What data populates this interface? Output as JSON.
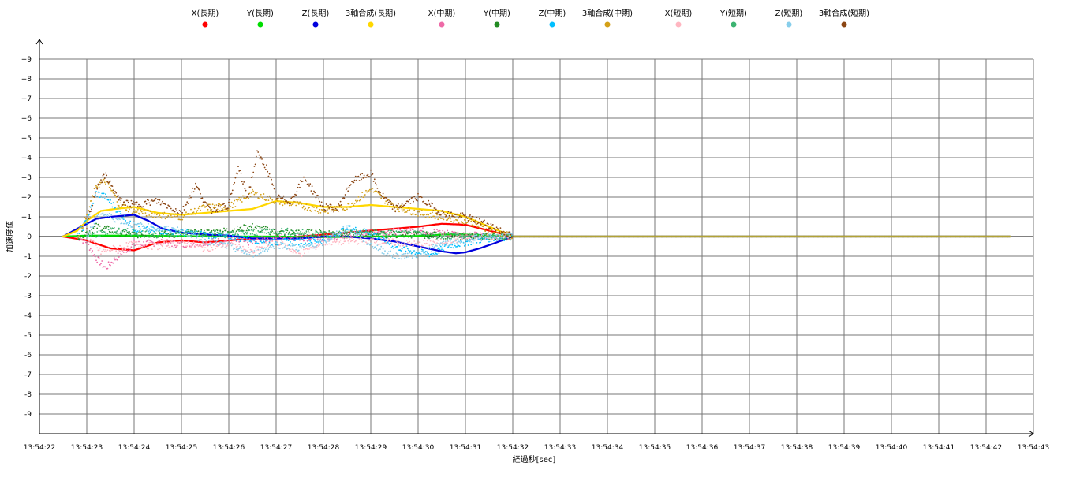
{
  "chart_data": {
    "type": "scatter",
    "title": "",
    "xlabel": "経過秒[sec]",
    "ylabel": "加速度値",
    "grid": true,
    "legend_position": "top",
    "ylim": [
      -10,
      10
    ],
    "y_tick_labels": [
      "+9",
      "+8",
      "+7",
      "+6",
      "+5",
      "+4",
      "+3",
      "+2",
      "+1",
      "0",
      "-1",
      "-2",
      "-3",
      "-4",
      "-5",
      "-6",
      "-7",
      "-8",
      "-9"
    ],
    "x_tick_labels": [
      "13:54:22",
      "13:54:23",
      "13:54:24",
      "13:54:25",
      "13:54:26",
      "13:54:27",
      "13:54:28",
      "13:54:29",
      "13:54:30",
      "13:54:31",
      "13:54:32",
      "13:54:33",
      "13:54:34",
      "13:54:35",
      "13:54:36",
      "13:54:37",
      "13:54:38",
      "13:54:39",
      "13:54:40",
      "13:54:41",
      "13:54:42",
      "13:54:43"
    ],
    "series": [
      {
        "name": "X(長期)",
        "color": "#ff0000",
        "x": [
          22.5,
          23.0,
          23.5,
          24.0,
          24.5,
          25.0,
          25.5,
          26.0,
          26.5,
          27.0,
          27.5,
          28.0,
          28.5,
          29.0,
          29.5,
          30.0,
          30.5,
          31.0,
          31.5,
          32.0,
          33.0,
          35.0,
          38.0,
          40.0,
          42.5
        ],
        "y": [
          0,
          -0.2,
          -0.6,
          -0.7,
          -0.3,
          -0.2,
          -0.3,
          -0.2,
          -0.1,
          -0.1,
          0,
          0.1,
          0.2,
          0.3,
          0.4,
          0.5,
          0.65,
          0.6,
          0.3,
          0,
          0,
          0,
          0,
          0,
          0
        ]
      },
      {
        "name": "Y(長期)",
        "color": "#00dd00",
        "x": [
          22.5,
          23.0,
          24.0,
          25.0,
          26.0,
          27.0,
          28.0,
          29.0,
          30.0,
          30.5,
          31.0,
          31.5,
          32.0,
          35.0,
          38.0,
          40.0,
          42.5
        ],
        "y": [
          0,
          0.05,
          0.05,
          0.02,
          0,
          0,
          -0.03,
          0,
          0.03,
          0.1,
          0.1,
          0.05,
          0,
          0,
          0,
          0,
          0
        ]
      },
      {
        "name": "Z(長期)",
        "color": "#0000dd",
        "x": [
          22.5,
          22.8,
          23.2,
          23.5,
          24.0,
          24.3,
          24.6,
          25.0,
          25.5,
          26.0,
          26.5,
          27.0,
          27.5,
          28.0,
          28.5,
          29.0,
          29.5,
          30.0,
          30.5,
          30.8,
          31.0,
          31.3,
          31.6,
          32.0,
          33.0,
          35.0,
          38.0,
          40.0,
          42.5
        ],
        "y": [
          0,
          0.4,
          0.9,
          1.0,
          1.1,
          0.8,
          0.4,
          0.2,
          0.1,
          0.05,
          -0.1,
          -0.1,
          -0.1,
          0,
          0,
          -0.1,
          -0.25,
          -0.5,
          -0.75,
          -0.85,
          -0.8,
          -0.6,
          -0.35,
          0,
          0,
          0,
          0,
          0,
          0
        ]
      },
      {
        "name": "3軸合成(長期)",
        "color": "#ffd700",
        "x": [
          22.5,
          22.8,
          23.0,
          23.3,
          23.6,
          24.0,
          24.5,
          25.0,
          25.5,
          26.0,
          26.5,
          27.0,
          27.5,
          28.0,
          28.5,
          29.0,
          29.5,
          30.0,
          30.5,
          31.0,
          31.5,
          32.0,
          33.0,
          35.0,
          38.0,
          40.0,
          42.5
        ],
        "y": [
          0,
          0.3,
          0.8,
          1.3,
          1.4,
          1.5,
          1.2,
          1.1,
          1.2,
          1.3,
          1.4,
          1.8,
          1.7,
          1.5,
          1.5,
          1.6,
          1.5,
          1.4,
          1.3,
          1.0,
          0.5,
          0,
          0,
          0,
          0,
          0,
          0
        ]
      },
      {
        "name": "X(中期)",
        "color": "#ee6aa7",
        "x": [
          22.8,
          23.0,
          23.2,
          23.4,
          23.7,
          24.0,
          24.5,
          25.0,
          25.5,
          26.0,
          26.5,
          27.0,
          28.0,
          29.0,
          30.0,
          30.5,
          31.0,
          31.5,
          32.0,
          35.0,
          40.0,
          42.5
        ],
        "y": [
          0,
          -0.3,
          -1.1,
          -1.6,
          -0.9,
          -0.4,
          -0.3,
          -0.4,
          -0.3,
          -0.2,
          -0.3,
          0,
          -0.1,
          0.2,
          0.3,
          0.2,
          0.1,
          0,
          0,
          0,
          0,
          0
        ]
      },
      {
        "name": "Y(中期)",
        "color": "#228b22",
        "x": [
          22.8,
          23.0,
          23.2,
          23.4,
          23.7,
          24.0,
          25.0,
          26.0,
          26.5,
          27.0,
          28.0,
          29.0,
          30.0,
          31.0,
          32.0,
          35.0,
          40.0,
          42.5
        ],
        "y": [
          0,
          0.2,
          0.5,
          0.4,
          0.2,
          0.1,
          0.1,
          0.3,
          0.5,
          0.2,
          0.2,
          0.1,
          0.1,
          0,
          0,
          0,
          0,
          0
        ]
      },
      {
        "name": "Z(中期)",
        "color": "#00bfff",
        "x": [
          22.8,
          23.0,
          23.2,
          23.4,
          23.7,
          24.0,
          24.5,
          25.0,
          26.0,
          27.0,
          28.0,
          28.5,
          29.0,
          29.5,
          30.0,
          30.3,
          30.6,
          31.0,
          31.5,
          32.0,
          35.0,
          40.0,
          42.5
        ],
        "y": [
          0,
          0.8,
          2.2,
          2.0,
          1.2,
          0.4,
          0.3,
          0.2,
          0,
          -0.3,
          -0.2,
          0.4,
          0.2,
          -0.5,
          -0.8,
          -0.9,
          -0.5,
          -0.3,
          -0.1,
          0,
          0,
          0,
          0
        ]
      },
      {
        "name": "3軸合成(中期)",
        "color": "#d4a017",
        "x": [
          22.8,
          23.0,
          23.2,
          23.4,
          23.7,
          24.0,
          24.5,
          25.0,
          25.5,
          26.0,
          26.5,
          27.0,
          27.5,
          28.0,
          28.5,
          29.0,
          29.5,
          30.0,
          30.5,
          31.0,
          31.5,
          32.0,
          35.0,
          40.0,
          42.5
        ],
        "y": [
          0,
          1.0,
          2.6,
          2.8,
          1.6,
          1.3,
          1.1,
          1.0,
          1.5,
          1.5,
          2.2,
          1.8,
          1.6,
          1.3,
          1.5,
          2.4,
          1.5,
          1.2,
          1.0,
          0.8,
          0.3,
          0,
          0,
          0,
          0
        ]
      },
      {
        "name": "X(短期)",
        "color": "#ffb6c1",
        "x": [
          23.0,
          23.3,
          23.6,
          24.0,
          24.5,
          25.0,
          25.5,
          26.0,
          26.5,
          27.0,
          27.5,
          28.0,
          29.0,
          30.0,
          31.0,
          31.5,
          32.0
        ],
        "y": [
          0,
          -0.8,
          -0.6,
          -0.4,
          -0.5,
          -0.3,
          -0.6,
          -0.4,
          -0.8,
          -0.2,
          -0.9,
          -0.3,
          -0.2,
          -0.4,
          -0.1,
          0,
          0
        ]
      },
      {
        "name": "Y(短期)",
        "color": "#3cb371",
        "x": [
          23.0,
          23.5,
          24.0,
          24.5,
          25.0,
          26.0,
          27.0,
          28.0,
          29.0,
          30.0,
          31.0,
          31.5,
          32.0
        ],
        "y": [
          0,
          0.3,
          0.2,
          0.1,
          0.2,
          0.1,
          0.3,
          0.1,
          0.2,
          0.1,
          0,
          0,
          0
        ]
      },
      {
        "name": "Z(短期)",
        "color": "#87ceeb",
        "x": [
          23.0,
          23.3,
          23.6,
          24.0,
          24.5,
          25.0,
          25.5,
          26.0,
          26.5,
          27.0,
          27.5,
          28.0,
          28.5,
          29.0,
          29.5,
          30.0,
          30.5,
          31.0,
          31.5,
          32.0
        ],
        "y": [
          0,
          1.2,
          0.9,
          0.6,
          0.4,
          0.3,
          -0.2,
          -0.5,
          -0.9,
          -0.4,
          -0.6,
          -0.3,
          0.5,
          -0.4,
          -1.0,
          -0.9,
          -0.4,
          -0.2,
          0,
          0
        ]
      },
      {
        "name": "3軸合成(短期)",
        "color": "#8b4513",
        "x": [
          23.0,
          23.2,
          23.4,
          23.7,
          24.0,
          24.5,
          25.0,
          25.3,
          25.6,
          26.0,
          26.2,
          26.4,
          26.6,
          26.8,
          27.0,
          27.3,
          27.6,
          28.0,
          28.3,
          28.6,
          29.0,
          29.2,
          29.5,
          30.0,
          30.5,
          31.0,
          31.5,
          32.0
        ],
        "y": [
          0.5,
          2.5,
          3.1,
          1.8,
          1.6,
          1.8,
          1.2,
          2.6,
          1.3,
          1.6,
          3.5,
          2.0,
          4.2,
          3.5,
          2.0,
          1.8,
          3.0,
          1.5,
          1.4,
          2.8,
          3.2,
          2.2,
          1.4,
          2.0,
          1.2,
          1.0,
          0.6,
          0
        ]
      }
    ]
  }
}
